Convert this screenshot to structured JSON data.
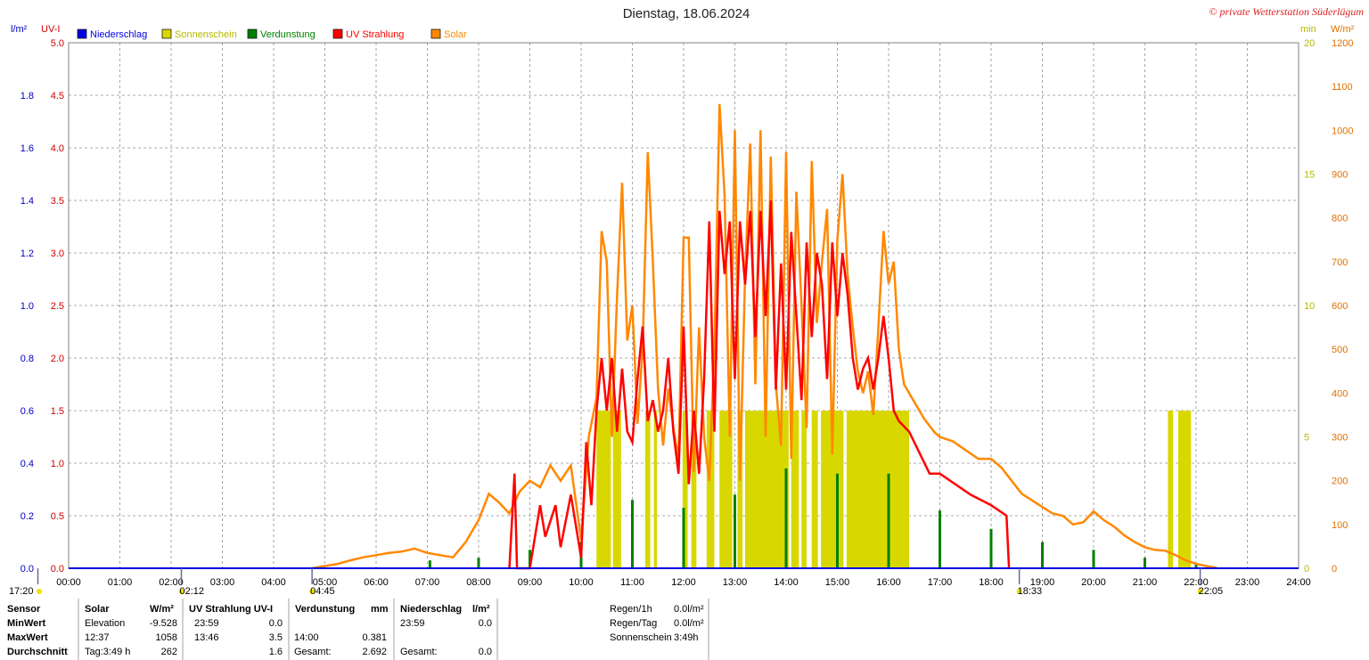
{
  "header": {
    "title": "Dienstag, 18.06.2024",
    "credit": "© private Wetterstation Süderlügum"
  },
  "colors": {
    "niederschlag": "#0000e0",
    "sonnenschein": "#d8d800",
    "verdunstung": "#008000",
    "uv": "#ff0000",
    "solar": "#ff8800",
    "grid": "#909090"
  },
  "legend": [
    {
      "key": "niederschlag",
      "label": "Niederschlag"
    },
    {
      "key": "sonnenschein",
      "label": "Sonnenschein"
    },
    {
      "key": "verdunstung",
      "label": "Verdunstung"
    },
    {
      "key": "uv",
      "label": "UV Strahlung"
    },
    {
      "key": "solar",
      "label": "Solar"
    }
  ],
  "chart_data": {
    "type": "line",
    "title": "Dienstag, 18.06.2024",
    "x_ticks": [
      "00:00",
      "01:00",
      "02:00",
      "03:00",
      "04:00",
      "05:00",
      "06:00",
      "07:00",
      "08:00",
      "09:00",
      "10:00",
      "11:00",
      "12:00",
      "13:00",
      "14:00",
      "15:00",
      "16:00",
      "17:00",
      "18:00",
      "19:00",
      "20:00",
      "21:00",
      "22:00",
      "23:00",
      "24:00"
    ],
    "xlim": [
      0,
      24
    ],
    "axes": {
      "precip": {
        "unit": "l/m²",
        "ylim": [
          0,
          2.0
        ],
        "ticks": [
          "0.0",
          "0.2",
          "0.4",
          "0.6",
          "0.8",
          "1.0",
          "1.2",
          "1.4",
          "1.6",
          "1.8"
        ]
      },
      "uv": {
        "unit": "UV-I",
        "ylim": [
          0,
          5.0
        ],
        "ticks": [
          "0.0",
          "0.5",
          "1.0",
          "1.5",
          "2.0",
          "2.5",
          "3.0",
          "3.5",
          "4.0",
          "4.5",
          "5.0"
        ]
      },
      "sun_min": {
        "unit": "min",
        "ylim": [
          0,
          20
        ],
        "ticks": [
          "0",
          "5",
          "10",
          "15",
          "20"
        ]
      },
      "solar": {
        "unit": "W/m²",
        "ylim": [
          0,
          1200
        ],
        "ticks": [
          "0",
          "100",
          "200",
          "300",
          "400",
          "500",
          "600",
          "700",
          "800",
          "900",
          "1000",
          "1100",
          "1200"
        ]
      }
    },
    "grid": true,
    "legend_position": "top-left",
    "sun_events": [
      {
        "label": "17:20",
        "hour": -0.6
      },
      {
        "label": "02:12",
        "hour": 2.2
      },
      {
        "label": "04:45",
        "hour": 4.75
      },
      {
        "label": "18:33",
        "hour": 18.55
      },
      {
        "label": "22:05",
        "hour": 22.08
      }
    ],
    "series": [
      {
        "name": "Solar",
        "axis": "solar",
        "points": [
          [
            4.75,
            0
          ],
          [
            5.0,
            5
          ],
          [
            5.25,
            10
          ],
          [
            5.5,
            18
          ],
          [
            5.75,
            25
          ],
          [
            6.0,
            30
          ],
          [
            6.25,
            35
          ],
          [
            6.5,
            38
          ],
          [
            6.75,
            45
          ],
          [
            7.0,
            35
          ],
          [
            7.25,
            30
          ],
          [
            7.5,
            25
          ],
          [
            7.75,
            60
          ],
          [
            8.0,
            110
          ],
          [
            8.2,
            170
          ],
          [
            8.4,
            150
          ],
          [
            8.6,
            125
          ],
          [
            8.8,
            175
          ],
          [
            9.0,
            200
          ],
          [
            9.2,
            185
          ],
          [
            9.4,
            235
          ],
          [
            9.6,
            200
          ],
          [
            9.8,
            235
          ],
          [
            10.0,
            65
          ],
          [
            10.15,
            300
          ],
          [
            10.3,
            390
          ],
          [
            10.4,
            770
          ],
          [
            10.5,
            700
          ],
          [
            10.6,
            300
          ],
          [
            10.7,
            620
          ],
          [
            10.8,
            880
          ],
          [
            10.9,
            520
          ],
          [
            11.0,
            600
          ],
          [
            11.1,
            330
          ],
          [
            11.2,
            500
          ],
          [
            11.3,
            950
          ],
          [
            11.4,
            700
          ],
          [
            11.5,
            410
          ],
          [
            11.6,
            280
          ],
          [
            11.7,
            410
          ],
          [
            11.8,
            320
          ],
          [
            11.9,
            250
          ],
          [
            12.0,
            755
          ],
          [
            12.1,
            755
          ],
          [
            12.2,
            220
          ],
          [
            12.3,
            550
          ],
          [
            12.4,
            300
          ],
          [
            12.5,
            200
          ],
          [
            12.6,
            500
          ],
          [
            12.7,
            1060
          ],
          [
            12.8,
            850
          ],
          [
            12.9,
            300
          ],
          [
            13.0,
            1000
          ],
          [
            13.1,
            200
          ],
          [
            13.2,
            670
          ],
          [
            13.3,
            970
          ],
          [
            13.4,
            420
          ],
          [
            13.5,
            1000
          ],
          [
            13.6,
            300
          ],
          [
            13.7,
            940
          ],
          [
            13.8,
            420
          ],
          [
            13.9,
            280
          ],
          [
            14.0,
            950
          ],
          [
            14.1,
            250
          ],
          [
            14.2,
            860
          ],
          [
            14.3,
            600
          ],
          [
            14.4,
            320
          ],
          [
            14.5,
            930
          ],
          [
            14.6,
            560
          ],
          [
            14.7,
            700
          ],
          [
            14.8,
            820
          ],
          [
            14.9,
            260
          ],
          [
            15.0,
            750
          ],
          [
            15.1,
            900
          ],
          [
            15.2,
            670
          ],
          [
            15.3,
            550
          ],
          [
            15.4,
            450
          ],
          [
            15.5,
            400
          ],
          [
            15.6,
            450
          ],
          [
            15.7,
            350
          ],
          [
            15.8,
            550
          ],
          [
            15.9,
            770
          ],
          [
            16.0,
            650
          ],
          [
            16.1,
            700
          ],
          [
            16.2,
            500
          ],
          [
            16.3,
            420
          ],
          [
            16.5,
            380
          ],
          [
            16.7,
            340
          ],
          [
            16.9,
            310
          ],
          [
            17.0,
            300
          ],
          [
            17.25,
            290
          ],
          [
            17.5,
            270
          ],
          [
            17.75,
            250
          ],
          [
            18.0,
            250
          ],
          [
            18.2,
            230
          ],
          [
            18.4,
            200
          ],
          [
            18.6,
            170
          ],
          [
            18.8,
            155
          ],
          [
            19.0,
            140
          ],
          [
            19.2,
            125
          ],
          [
            19.4,
            120
          ],
          [
            19.6,
            100
          ],
          [
            19.8,
            105
          ],
          [
            20.0,
            130
          ],
          [
            20.2,
            110
          ],
          [
            20.4,
            95
          ],
          [
            20.6,
            75
          ],
          [
            20.8,
            60
          ],
          [
            21.0,
            48
          ],
          [
            21.2,
            42
          ],
          [
            21.4,
            40
          ],
          [
            21.6,
            30
          ],
          [
            21.8,
            18
          ],
          [
            22.0,
            10
          ],
          [
            22.2,
            5
          ],
          [
            22.4,
            1
          ]
        ]
      },
      {
        "name": "UV Strahlung",
        "axis": "uv",
        "points": [
          [
            8.6,
            0
          ],
          [
            8.7,
            0.9
          ],
          [
            8.75,
            0
          ],
          [
            9.0,
            0
          ],
          [
            9.2,
            0.6
          ],
          [
            9.3,
            0.3
          ],
          [
            9.5,
            0.6
          ],
          [
            9.6,
            0.2
          ],
          [
            9.8,
            0.7
          ],
          [
            10.0,
            0.1
          ],
          [
            10.1,
            1.2
          ],
          [
            10.2,
            0.6
          ],
          [
            10.3,
            1.5
          ],
          [
            10.4,
            2.0
          ],
          [
            10.5,
            1.5
          ],
          [
            10.6,
            2.0
          ],
          [
            10.7,
            1.3
          ],
          [
            10.8,
            1.9
          ],
          [
            10.9,
            1.3
          ],
          [
            11.0,
            1.2
          ],
          [
            11.1,
            1.8
          ],
          [
            11.2,
            2.3
          ],
          [
            11.3,
            1.4
          ],
          [
            11.4,
            1.6
          ],
          [
            11.5,
            1.3
          ],
          [
            11.6,
            1.5
          ],
          [
            11.7,
            2.0
          ],
          [
            11.8,
            1.3
          ],
          [
            11.9,
            0.9
          ],
          [
            12.0,
            2.3
          ],
          [
            12.1,
            0.8
          ],
          [
            12.2,
            1.5
          ],
          [
            12.3,
            0.9
          ],
          [
            12.4,
            1.8
          ],
          [
            12.5,
            3.3
          ],
          [
            12.6,
            1.3
          ],
          [
            12.7,
            3.4
          ],
          [
            12.8,
            2.8
          ],
          [
            12.9,
            3.3
          ],
          [
            13.0,
            1.8
          ],
          [
            13.1,
            3.3
          ],
          [
            13.2,
            2.7
          ],
          [
            13.3,
            3.4
          ],
          [
            13.4,
            2.2
          ],
          [
            13.5,
            3.4
          ],
          [
            13.6,
            2.4
          ],
          [
            13.7,
            3.5
          ],
          [
            13.8,
            1.7
          ],
          [
            13.9,
            2.9
          ],
          [
            14.0,
            1.7
          ],
          [
            14.1,
            3.2
          ],
          [
            14.2,
            2.4
          ],
          [
            14.3,
            1.6
          ],
          [
            14.4,
            3.1
          ],
          [
            14.5,
            2.2
          ],
          [
            14.6,
            3.0
          ],
          [
            14.7,
            2.7
          ],
          [
            14.8,
            1.8
          ],
          [
            14.9,
            3.1
          ],
          [
            15.0,
            2.4
          ],
          [
            15.1,
            3.0
          ],
          [
            15.2,
            2.6
          ],
          [
            15.3,
            2.0
          ],
          [
            15.4,
            1.7
          ],
          [
            15.5,
            1.9
          ],
          [
            15.6,
            2.0
          ],
          [
            15.7,
            1.7
          ],
          [
            15.8,
            2.0
          ],
          [
            15.9,
            2.4
          ],
          [
            16.0,
            2.0
          ],
          [
            16.1,
            1.5
          ],
          [
            16.2,
            1.4
          ],
          [
            16.4,
            1.3
          ],
          [
            16.6,
            1.1
          ],
          [
            16.8,
            0.9
          ],
          [
            17.0,
            0.9
          ],
          [
            17.3,
            0.8
          ],
          [
            17.6,
            0.7
          ],
          [
            18.0,
            0.6
          ],
          [
            18.3,
            0.5
          ],
          [
            18.35,
            0
          ]
        ]
      },
      {
        "name": "Verdunstung",
        "axis": "precip",
        "events": [
          [
            7.05,
            0.03
          ],
          [
            8.0,
            0.04
          ],
          [
            9.0,
            0.07
          ],
          [
            10.0,
            0.1
          ],
          [
            11.0,
            0.26
          ],
          [
            12.0,
            0.23
          ],
          [
            13.0,
            0.28
          ],
          [
            14.0,
            0.38
          ],
          [
            15.0,
            0.36
          ],
          [
            16.0,
            0.36
          ],
          [
            17.0,
            0.22
          ],
          [
            18.0,
            0.15
          ],
          [
            19.0,
            0.1
          ],
          [
            20.0,
            0.07
          ],
          [
            21.0,
            0.04
          ],
          [
            22.0,
            0.02
          ]
        ]
      },
      {
        "name": "Sonnenschein",
        "axis": "sun_min",
        "intervals": [
          [
            10.3,
            10.58
          ],
          [
            10.62,
            10.78
          ],
          [
            11.25,
            11.35
          ],
          [
            11.42,
            11.48
          ],
          [
            11.98,
            12.08
          ],
          [
            12.15,
            12.25
          ],
          [
            12.45,
            12.6
          ],
          [
            12.7,
            12.95
          ],
          [
            13.05,
            13.15
          ],
          [
            13.2,
            14.05
          ],
          [
            14.1,
            14.25
          ],
          [
            14.3,
            14.4
          ],
          [
            14.5,
            14.62
          ],
          [
            14.68,
            15.12
          ],
          [
            15.18,
            16.4
          ],
          [
            21.45,
            21.55
          ],
          [
            21.65,
            21.9
          ]
        ],
        "value": 6
      },
      {
        "name": "Niederschlag",
        "axis": "precip",
        "values": [
          0
        ]
      }
    ]
  },
  "stats": {
    "headers": {
      "sensor": "Sensor",
      "solar": "Solar",
      "solar_unit": "W/m²",
      "uv": "UV Strahlung UV-I",
      "evap": "Verdunstung",
      "evap_unit": "mm",
      "precip": "Niederschlag",
      "precip_unit": "l/m²"
    },
    "rows": [
      {
        "label": "MinWert",
        "solar_time": "Elevation",
        "solar_val": "-9.528",
        "uv_time": "23:59",
        "uv_val": "0.0",
        "evap_time": "",
        "evap_val": "",
        "precip_time": "23:59",
        "precip_val": "0.0"
      },
      {
        "label": "MaxWert",
        "solar_time": "12:37",
        "solar_val": "1058",
        "uv_time": "13:46",
        "uv_val": "3.5",
        "evap_time": "14:00",
        "evap_val": "0.381",
        "precip_time": "",
        "precip_val": ""
      },
      {
        "label": "Durchschnitt",
        "solar_time": "Tag:3:49 h",
        "solar_val": "262",
        "uv_time": "",
        "uv_val": "1.6",
        "evap_time": "Gesamt:",
        "evap_val": "2.692",
        "precip_time": "Gesamt:",
        "precip_val": "0.0"
      }
    ],
    "summary": [
      {
        "label": "Regen/1h",
        "value": "0.0l/m²"
      },
      {
        "label": "Regen/Tag",
        "value": "0.0l/m²"
      },
      {
        "label": "Sonnenschein",
        "value": "3:49h"
      }
    ]
  }
}
